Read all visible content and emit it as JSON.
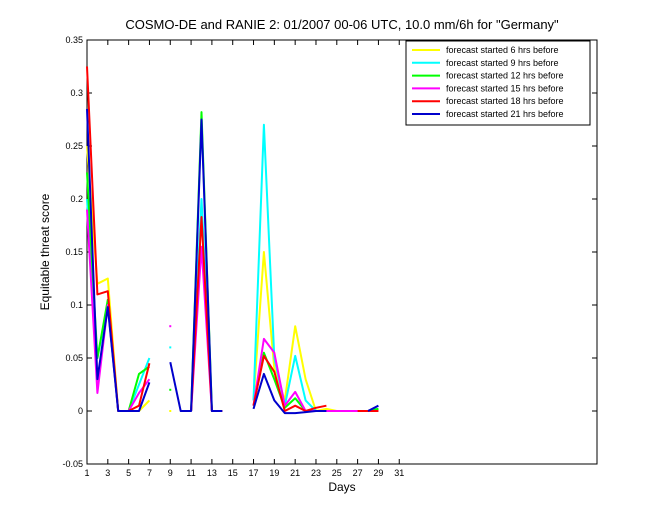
{
  "chart_data": {
    "type": "line",
    "title": "COSMO-DE and RANIE 2: 01/2007 00-06 UTC, 10.0 mm/6h for \"Germany\"",
    "xlabel": "Days",
    "ylabel": "Equitable threat score",
    "xlim": [
      1,
      50
    ],
    "ylim": [
      -0.05,
      0.35
    ],
    "xticks": [
      1,
      3,
      5,
      7,
      9,
      11,
      13,
      15,
      17,
      19,
      21,
      23,
      25,
      27,
      29,
      31
    ],
    "yticks": [
      -0.05,
      0,
      0.05,
      0.1,
      0.15,
      0.2,
      0.25,
      0.3,
      0.35
    ],
    "ytick_labels": [
      "-0.05",
      "0",
      "0.05",
      "0.1",
      "0.15",
      "0.2",
      "0.25",
      "0.3",
      "0.35"
    ],
    "grid": false,
    "legend_position": "top-right",
    "series": [
      {
        "name": "forecast started 6 hrs before",
        "color": "#ffff00",
        "values": [
          [
            1,
            0.25
          ],
          [
            2,
            0.12
          ],
          [
            3,
            0.125
          ],
          [
            4,
            0
          ],
          [
            5,
            0
          ],
          [
            6,
            0
          ],
          [
            7,
            0.01
          ],
          [
            null,
            null
          ],
          [
            9,
            0
          ],
          [
            null,
            null
          ],
          [
            17,
            0.01
          ],
          [
            18,
            0.15
          ],
          [
            19,
            0.04
          ],
          [
            20,
            0.01
          ],
          [
            21,
            0.08
          ],
          [
            22,
            0.03
          ],
          [
            23,
            0
          ],
          [
            24,
            0.002
          ],
          [
            25,
            0
          ],
          [
            26,
            0
          ],
          [
            27,
            0
          ],
          [
            28,
            0
          ],
          [
            29,
            0.002
          ]
        ]
      },
      {
        "name": "forecast started 9 hrs before",
        "color": "#00ffff",
        "values": [
          [
            1,
            0.2
          ],
          [
            2,
            0.05
          ],
          [
            3,
            0.1
          ],
          [
            4,
            0
          ],
          [
            5,
            0
          ],
          [
            6,
            0.025
          ],
          [
            7,
            0.05
          ],
          [
            null,
            null
          ],
          [
            9,
            0.06
          ],
          [
            null,
            null
          ],
          [
            11,
            0
          ],
          [
            12,
            0.2
          ],
          [
            13,
            0
          ],
          [
            14,
            0
          ],
          [
            null,
            null
          ],
          [
            17,
            0.01
          ],
          [
            18,
            0.27
          ],
          [
            19,
            0.05
          ],
          [
            20,
            0.005
          ],
          [
            21,
            0.052
          ],
          [
            22,
            0.01
          ],
          [
            23,
            0
          ],
          [
            24,
            0
          ],
          [
            25,
            0
          ],
          [
            26,
            0
          ],
          [
            27,
            0
          ],
          [
            28,
            0
          ],
          [
            29,
            0.002
          ]
        ]
      },
      {
        "name": "forecast started 12 hrs before",
        "color": "#00ff00",
        "values": [
          [
            1,
            0.225
          ],
          [
            2,
            0.05
          ],
          [
            3,
            0.105
          ],
          [
            4,
            0
          ],
          [
            5,
            0
          ],
          [
            6,
            0.035
          ],
          [
            7,
            0.042
          ],
          [
            null,
            null
          ],
          [
            9,
            0.02
          ],
          [
            null,
            null
          ],
          [
            11,
            0
          ],
          [
            12,
            0.282
          ],
          [
            13,
            0
          ],
          [
            14,
            0
          ],
          [
            null,
            null
          ],
          [
            17,
            0.005
          ],
          [
            18,
            0.055
          ],
          [
            19,
            0.03
          ],
          [
            20,
            0.003
          ],
          [
            21,
            0.012
          ],
          [
            22,
            0
          ],
          [
            23,
            0
          ],
          [
            24,
            0
          ],
          [
            25,
            0
          ],
          [
            26,
            0
          ],
          [
            27,
            0
          ],
          [
            28,
            0
          ],
          [
            29,
            0.002
          ]
        ]
      },
      {
        "name": "forecast started 15 hrs before",
        "color": "#ff00ff",
        "values": [
          [
            1,
            0.19
          ],
          [
            2,
            0.017
          ],
          [
            3,
            0.1
          ],
          [
            4,
            0
          ],
          [
            5,
            0
          ],
          [
            6,
            0.017
          ],
          [
            7,
            0.03
          ],
          [
            null,
            null
          ],
          [
            9,
            0.08
          ],
          [
            null,
            null
          ],
          [
            11,
            0
          ],
          [
            12,
            0.155
          ],
          [
            13,
            0
          ],
          [
            14,
            0
          ],
          [
            null,
            null
          ],
          [
            17,
            0.005
          ],
          [
            18,
            0.068
          ],
          [
            19,
            0.055
          ],
          [
            20,
            0.005
          ],
          [
            21,
            0.018
          ],
          [
            22,
            0
          ],
          [
            23,
            0
          ],
          [
            24,
            0
          ],
          [
            25,
            0
          ],
          [
            26,
            0
          ],
          [
            27,
            0
          ],
          [
            28,
            0
          ],
          [
            29,
            0
          ]
        ]
      },
      {
        "name": "forecast started 18 hrs before",
        "color": "#ff0000",
        "values": [
          [
            1,
            0.325
          ],
          [
            2,
            0.11
          ],
          [
            3,
            0.113
          ],
          [
            4,
            0
          ],
          [
            5,
            0
          ],
          [
            6,
            0.005
          ],
          [
            7,
            0.045
          ],
          [
            null,
            null
          ],
          [
            11,
            0
          ],
          [
            12,
            0.183
          ],
          [
            13,
            0
          ],
          [
            14,
            0
          ],
          [
            null,
            null
          ],
          [
            17,
            0.005
          ],
          [
            18,
            0.052
          ],
          [
            19,
            0.037
          ],
          [
            20,
            0
          ],
          [
            21,
            0.005
          ],
          [
            22,
            0
          ],
          [
            23,
            0.003
          ],
          [
            24,
            0.005
          ],
          [
            null,
            null
          ],
          [
            27,
            0
          ],
          [
            28,
            0
          ],
          [
            29,
            0
          ]
        ]
      },
      {
        "name": "forecast started 21 hrs before",
        "color": "#0000cc",
        "values": [
          [
            1,
            0.285
          ],
          [
            2,
            0.03
          ],
          [
            3,
            0.098
          ],
          [
            4,
            0
          ],
          [
            5,
            0
          ],
          [
            6,
            0
          ],
          [
            7,
            0.027
          ],
          [
            null,
            null
          ],
          [
            9,
            0.046
          ],
          [
            10,
            0
          ],
          [
            11,
            0
          ],
          [
            12,
            0.275
          ],
          [
            13,
            0
          ],
          [
            14,
            0
          ],
          [
            null,
            null
          ],
          [
            17,
            0.002
          ],
          [
            18,
            0.035
          ],
          [
            19,
            0.01
          ],
          [
            20,
            -0.002
          ],
          [
            21,
            -0.002
          ],
          [
            22,
            -0.001
          ],
          [
            23,
            0
          ],
          [
            24,
            0
          ],
          [
            null,
            null
          ],
          [
            28,
            0
          ],
          [
            29,
            0.005
          ]
        ]
      }
    ]
  }
}
